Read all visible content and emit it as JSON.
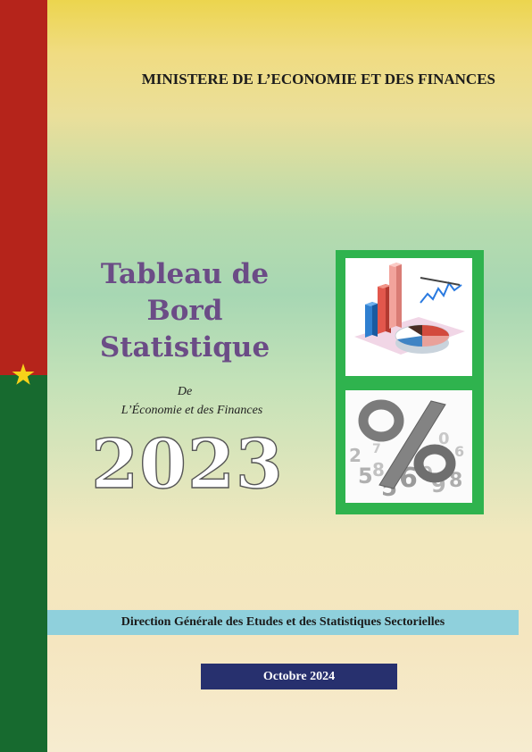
{
  "ministry": "MINISTERE DE L’ECONOMIE ET DES FINANCES",
  "title": {
    "line1": "Tableau de",
    "line2": "Bord",
    "line3": "Statistique"
  },
  "subtitle": {
    "de": "De",
    "economy": "L’Économie et des Finances"
  },
  "year": "2023",
  "directorate": "Direction Générale des Etudes et des Statistiques Sectorielles",
  "date": "Octobre 2024",
  "colors": {
    "flag_red": "#b5241b",
    "flag_green": "#176a2f",
    "star": "#f6d21a",
    "title": "#6b4c86",
    "green_frame": "#2fb34e",
    "band_blue": "#8fd0dc",
    "date_bg": "#27306e"
  },
  "icons": [
    "star-icon",
    "charts-illustration",
    "percent-numbers-illustration"
  ]
}
